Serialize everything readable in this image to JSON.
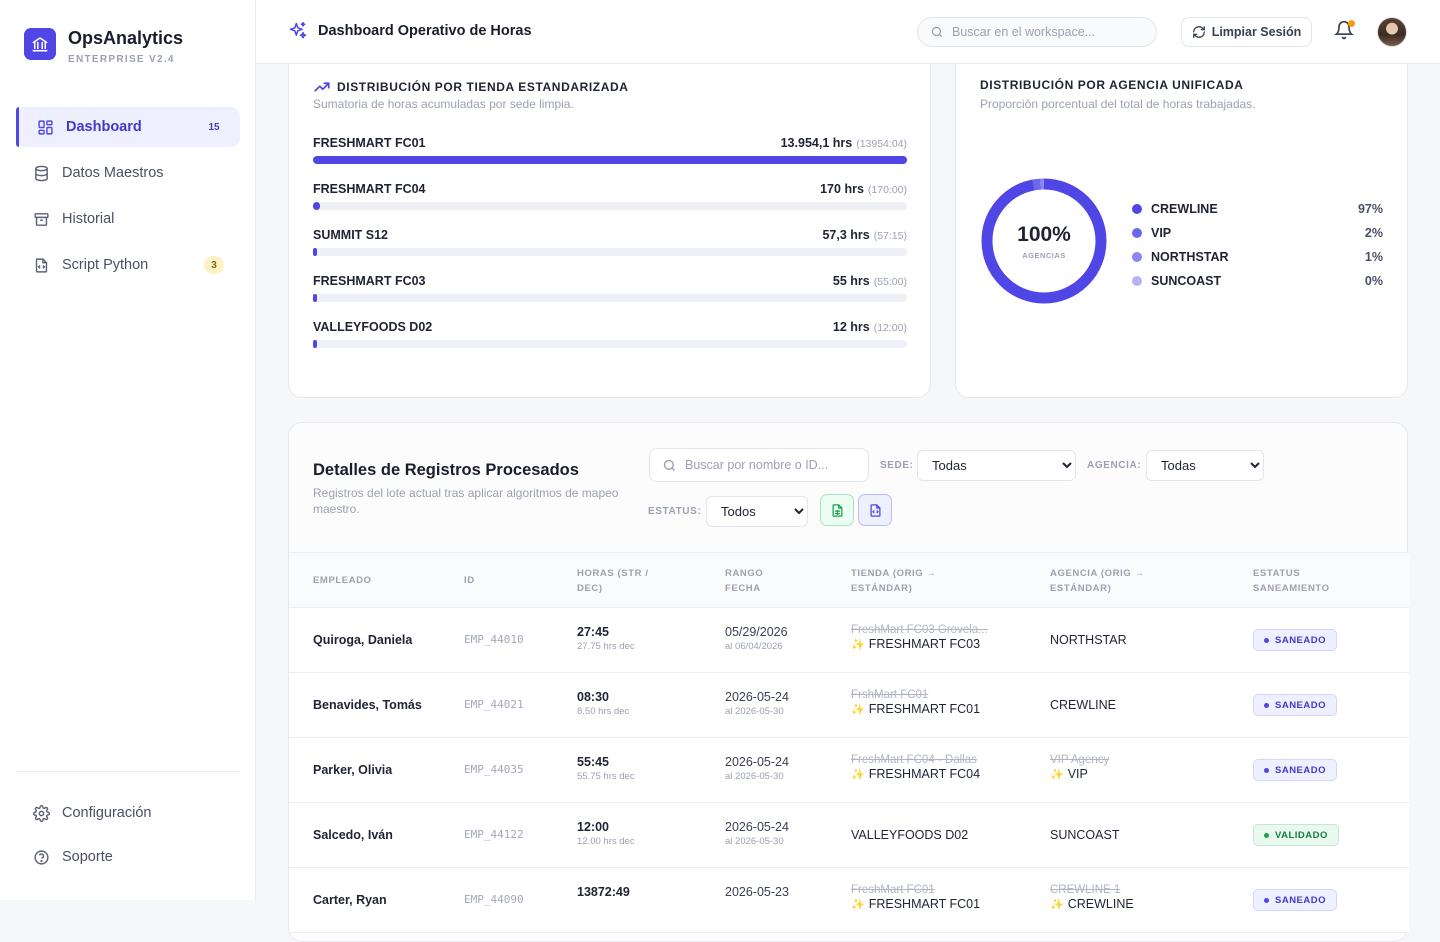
{
  "brand": {
    "name": "OpsAnalytics",
    "subtitle": "ENTERPRISE V2.4"
  },
  "nav": {
    "items": [
      {
        "label": "Dashboard",
        "badge": "15",
        "icon": "layout-grid-icon",
        "active": true
      },
      {
        "label": "Datos Maestros",
        "badge": "",
        "icon": "database-icon"
      },
      {
        "label": "Historial",
        "badge": "",
        "icon": "archive-icon"
      },
      {
        "label": "Script Python",
        "badge": "3",
        "icon": "file-code-icon"
      }
    ],
    "bottom": [
      {
        "label": "Configuración",
        "icon": "gear-icon"
      },
      {
        "label": "Soporte",
        "icon": "help-circle-icon"
      }
    ]
  },
  "header": {
    "title": "Dashboard Operativo de Horas",
    "search_placeholder": "Buscar en el workspace...",
    "clear_label": "Limpiar Sesión"
  },
  "stores": {
    "title": "DISTRIBUCIÓN POR TIENDA ESTANDARIZADA",
    "subtitle": "Sumatoria de horas acumuladas por sede limpia.",
    "rows": [
      {
        "name": "FRESHMART FC01",
        "value": "13.954,1 hrs",
        "paren": "(13954:04)",
        "fraction": 1.0
      },
      {
        "name": "FRESHMART FC04",
        "value": "170 hrs",
        "paren": "(170:00)",
        "fraction": 0.0122
      },
      {
        "name": "SUMMIT S12",
        "value": "57,3 hrs",
        "paren": "(57:15)",
        "fraction": 0.0041
      },
      {
        "name": "FRESHMART FC03",
        "value": "55 hrs",
        "paren": "(55:00)",
        "fraction": 0.0039
      },
      {
        "name": "VALLEYFOODS D02",
        "value": "12 hrs",
        "paren": "(12:00)",
        "fraction": 0.0009
      }
    ]
  },
  "agency": {
    "title": "DISTRIBUCIÓN POR AGENCIA UNIFICADA",
    "subtitle": "Proporción porcentual del total de horas trabajadas.",
    "center_value": "100%",
    "center_label": "AGENCIAS",
    "segments": [
      {
        "name": "CREWLINE",
        "pct_label": "97%",
        "share": 97,
        "color": "#4f46e5"
      },
      {
        "name": "VIP",
        "pct_label": "2%",
        "share": 2,
        "color": "#6d67ea"
      },
      {
        "name": "NORTHSTAR",
        "pct_label": "1%",
        "share": 1,
        "color": "#8b87ef"
      },
      {
        "name": "SUNCOAST",
        "pct_label": "0%",
        "share": 0,
        "color": "#b6b3f5"
      }
    ]
  },
  "table": {
    "title": "Detalles de Registros Procesados",
    "subtitle": "Registros del lote actual tras aplicar algoritmos de mapeo maestro.",
    "search_placeholder": "Buscar por nombre o ID...",
    "filters": {
      "sede_label": "SEDE:",
      "sede_value": "Todas",
      "agencia_label": "AGENCIA:",
      "agencia_value": "Todas",
      "estatus_label": "ESTATUS:",
      "estatus_value": "Todos"
    },
    "columns": [
      "EMPLEADO",
      "ID",
      "HORAS (STR / DEC)",
      "RANGO FECHA",
      "TIENDA (ORIG → ESTÁNDAR)",
      "AGENCIA (ORIG → ESTÁNDAR)",
      "ESTATUS SANEAMIENTO"
    ],
    "rows": [
      {
        "name": "Quiroga, Daniela",
        "id": "EMP_44010",
        "hours": "27:45",
        "hours_dec": "27.75 hrs dec",
        "date": "05/29/2026",
        "date_to": "al 06/04/2026",
        "store_orig": "FreshMart FC03 Grovela...",
        "store_std": "FRESHMART FC03",
        "agency_orig": "",
        "agency_std": "NORTHSTAR",
        "status": "SANEADO",
        "status_color": "indigo"
      },
      {
        "name": "Benavides, Tomás",
        "id": "EMP_44021",
        "hours": "08:30",
        "hours_dec": "8.50 hrs dec",
        "date": "2026-05-24",
        "date_to": "al 2026-05-30",
        "store_orig": "FrshMart FC01",
        "store_std": "FRESHMART FC01",
        "agency_orig": "",
        "agency_std": "CREWLINE",
        "status": "SANEADO",
        "status_color": "indigo"
      },
      {
        "name": "Parker, Olivia",
        "id": "EMP_44035",
        "hours": "55:45",
        "hours_dec": "55.75 hrs dec",
        "date": "2026-05-24",
        "date_to": "al 2026-05-30",
        "store_orig": "FreshMart FC04 - Dallas",
        "store_std": "FRESHMART FC04",
        "agency_orig": "VIP Agency",
        "agency_std": "VIP",
        "status": "SANEADO",
        "status_color": "indigo"
      },
      {
        "name": "Salcedo, Iván",
        "id": "EMP_44122",
        "hours": "12:00",
        "hours_dec": "12.00 hrs dec",
        "date": "2026-05-24",
        "date_to": "al 2026-05-30",
        "store_orig": "",
        "store_std": "VALLEYFOODS D02",
        "agency_orig": "",
        "agency_std": "SUNCOAST",
        "status": "VALIDADO",
        "status_color": "green"
      },
      {
        "name": "Carter, Ryan",
        "id": "EMP_44090",
        "hours": "13872:49",
        "hours_dec": "",
        "date": "2026-05-23",
        "date_to": "",
        "store_orig": "FreshMart FC01",
        "store_std": "FRESHMART FC01",
        "agency_orig": "CREWLINE 1",
        "agency_std": "CREWLINE",
        "status": "SANEADO",
        "status_color": "indigo"
      }
    ]
  }
}
